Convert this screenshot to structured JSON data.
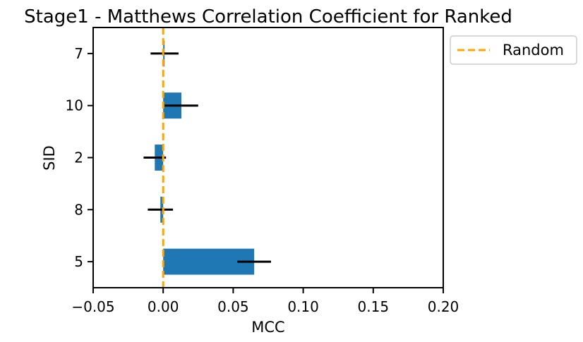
{
  "chart_data": {
    "type": "bar",
    "orientation": "horizontal",
    "title": "Stage1 - Matthews Correlation Coefficient for Ranked",
    "xlabel": "MCC",
    "ylabel": "SID",
    "categories": [
      "7",
      "10",
      "2",
      "8",
      "5"
    ],
    "values": [
      0.001,
      0.013,
      -0.006,
      -0.002,
      0.065
    ],
    "errors": [
      0.01,
      0.012,
      0.008,
      0.009,
      0.012
    ],
    "xlim": [
      -0.05,
      0.2
    ],
    "xticks": [
      "−0.05",
      "0.00",
      "0.05",
      "0.10",
      "0.15",
      "0.20"
    ],
    "xtick_values": [
      -0.05,
      0.0,
      0.05,
      0.1,
      0.15,
      0.2
    ],
    "reference_line": {
      "x": 0.0,
      "label": "Random",
      "style": "dashed",
      "color": "#FFA500"
    },
    "bar_color": "#1F77B4",
    "error_color": "#000000",
    "legend": {
      "position": "outside-right-top",
      "entries": [
        "Random"
      ]
    },
    "grid": false
  }
}
